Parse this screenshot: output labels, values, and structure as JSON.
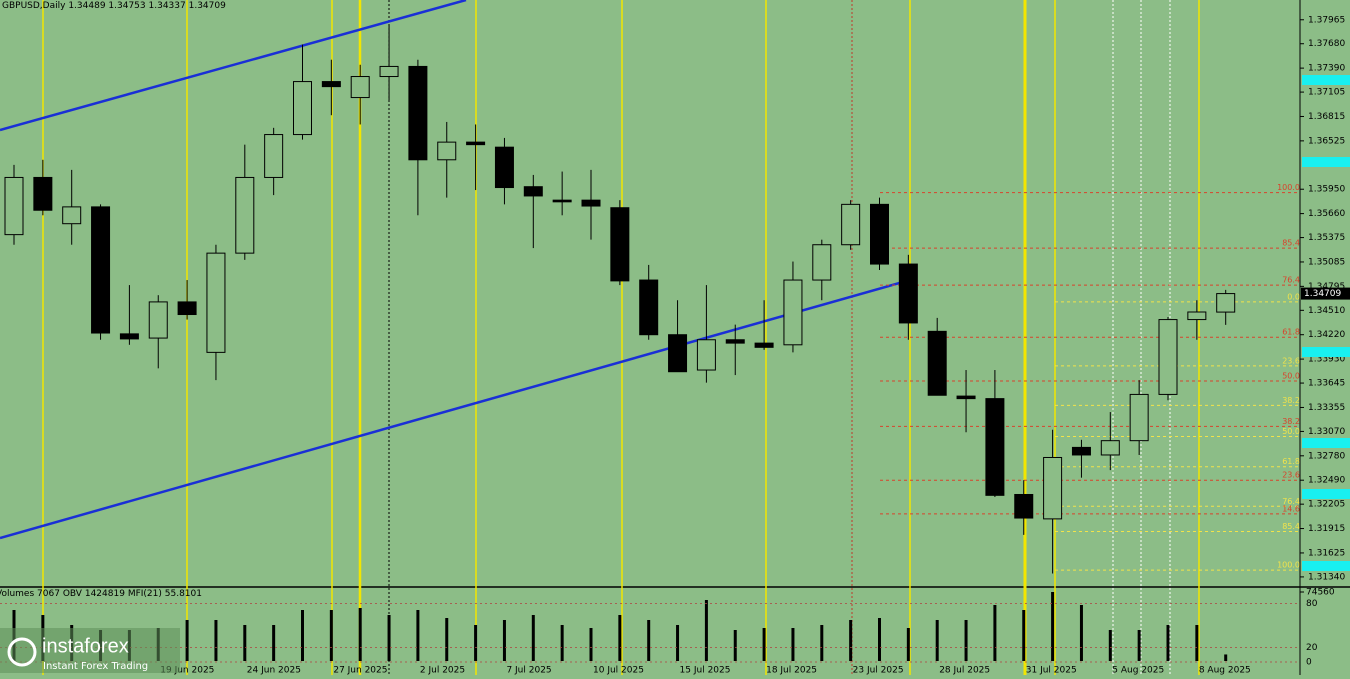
{
  "chart_data": {
    "type": "candlestick",
    "title": "GBPUSD,Daily",
    "categories": [
      null,
      null,
      null,
      null,
      null,
      "19 Jun 2025",
      null,
      null,
      "24 Jun 2025",
      null,
      null,
      "27 Jun 2025",
      null,
      null,
      "2 Jul 2025",
      null,
      null,
      "7 Jul 2025",
      null,
      null,
      "10 Jul 2025",
      null,
      null,
      "15 Jul 2025",
      null,
      null,
      "18 Jul 2025",
      null,
      null,
      "23 Jul 2025",
      null,
      null,
      "28 Jul 2025",
      null,
      null,
      "31 Jul 2025",
      null,
      null,
      "5 Aug 2025",
      null,
      null,
      "8 Aug 2025",
      null
    ],
    "open": [
      1.3541,
      1.3609,
      1.3554,
      1.3574,
      1.3423,
      1.3418,
      1.3461,
      1.3401,
      1.3519,
      1.3609,
      1.366,
      1.3723,
      1.3704,
      1.3729,
      1.3741,
      1.363,
      1.3651,
      1.3645,
      1.3598,
      1.3582,
      1.3582,
      1.3573,
      1.3487,
      1.3422,
      1.338,
      1.3416,
      1.3412,
      1.341,
      1.3487,
      1.3529,
      1.3577,
      1.3506,
      1.3426,
      1.3349,
      1.3346,
      1.3232,
      1.3203,
      1.3288,
      1.3279,
      1.3296,
      1.3351,
      1.344,
      1.34489
    ],
    "high": [
      1.3624,
      1.363,
      1.3618,
      1.3577,
      1.3481,
      1.3469,
      1.3487,
      1.3529,
      1.3648,
      1.3668,
      1.3767,
      1.3749,
      1.3743,
      1.3791,
      1.3749,
      1.3675,
      1.3672,
      1.3656,
      1.3612,
      1.3616,
      1.3618,
      1.3582,
      1.3505,
      1.3463,
      1.3481,
      1.3434,
      1.3463,
      1.3509,
      1.3535,
      1.3582,
      1.3585,
      1.3517,
      1.3442,
      1.338,
      1.338,
      1.3249,
      1.3309,
      1.3297,
      1.333,
      1.3368,
      1.3443,
      1.3463,
      1.34753
    ],
    "low": [
      1.3529,
      1.3564,
      1.3529,
      1.3416,
      1.341,
      1.3382,
      1.344,
      1.3368,
      1.3511,
      1.3588,
      1.3654,
      1.3683,
      1.3672,
      1.3701,
      1.3564,
      1.3585,
      1.3594,
      1.3577,
      1.3525,
      1.3564,
      1.3535,
      1.3481,
      1.3416,
      1.3378,
      1.3365,
      1.3374,
      1.3404,
      1.3401,
      1.3463,
      1.3523,
      1.3499,
      1.3416,
      1.335,
      1.3306,
      1.3229,
      1.3184,
      1.3138,
      1.3252,
      1.3261,
      1.3279,
      1.3344,
      1.3416,
      1.34337
    ],
    "close": [
      1.3609,
      1.357,
      1.3574,
      1.3424,
      1.3417,
      1.3461,
      1.3446,
      1.3519,
      1.3609,
      1.366,
      1.3723,
      1.3717,
      1.3729,
      1.3741,
      1.363,
      1.3651,
      1.3648,
      1.3597,
      1.3587,
      1.358,
      1.3575,
      1.3486,
      1.3422,
      1.3378,
      1.3416,
      1.3412,
      1.3407,
      1.3487,
      1.3529,
      1.3577,
      1.3506,
      1.3436,
      1.335,
      1.3346,
      1.3231,
      1.3204,
      1.3276,
      1.3279,
      1.3296,
      1.3351,
      1.344,
      1.3449,
      1.34709
    ],
    "ylim": [
      1.3122,
      1.382
    ],
    "yticks": [
      1.37965,
      {
        "value": 1.3768,
        "label": "1.37680"
      },
      {
        "value": 1.3739,
        "label": "1.37390"
      },
      1.37105,
      1.36815,
      1.36525,
      {
        "value": 1.3595,
        "label": "1.35950"
      },
      {
        "value": 1.3566,
        "label": "1.35660"
      },
      1.35375,
      1.35085,
      1.34795,
      {
        "value": 1.3451,
        "label": "1.34510"
      },
      {
        "value": 1.3422,
        "label": "1.34220"
      },
      {
        "value": 1.3393,
        "label": "1.33930"
      },
      1.33645,
      1.33355,
      {
        "value": 1.3307,
        "label": "1.33070"
      },
      {
        "value": 1.3278,
        "label": "1.32780"
      },
      {
        "value": 1.3249,
        "label": "1.32490"
      },
      1.32205,
      1.31915,
      1.31625,
      {
        "value": 1.3134,
        "label": "1.31340"
      }
    ],
    "fib_levels": [
      {
        "label": "100.0",
        "value": 1.3591,
        "color": "#d8432c"
      },
      {
        "label": "85.4",
        "value": 1.3525,
        "color": "#d8432c"
      },
      {
        "label": "76.4",
        "value": 1.3481,
        "color": "#d8432c"
      },
      {
        "label": "0.0",
        "value": 1.3461,
        "color": "#f2e34a"
      },
      {
        "label": "61.8",
        "value": 1.3419,
        "color": "#d8432c"
      },
      {
        "label": "23.6",
        "value": 1.3385,
        "color": "#f2e34a"
      },
      {
        "label": "50.0",
        "value": 1.3367,
        "color": "#d8432c"
      },
      {
        "label": "38.2",
        "value": 1.3338,
        "color": "#f2e34a"
      },
      {
        "label": "38.2",
        "value": 1.3313,
        "color": "#d8432c"
      },
      {
        "label": "50.0",
        "value": 1.3301,
        "color": "#f2e34a"
      },
      {
        "label": "61.8",
        "value": 1.3265,
        "color": "#f2e34a"
      },
      {
        "label": "23.6",
        "value": 1.3249,
        "color": "#d8432c"
      },
      {
        "label": "76.4",
        "value": 1.3218,
        "color": "#f2e34a"
      },
      {
        "label": "14.6",
        "value": 1.3209,
        "color": "#d8432c"
      },
      {
        "label": "85.4",
        "value": 1.3188,
        "color": "#f2e34a"
      },
      {
        "label": "100.0",
        "value": 1.3142,
        "color": "#f2e34a"
      }
    ],
    "volume": {
      "label": "Volumes",
      "values": [
        55110,
        49708,
        38902,
        33499,
        33499,
        35660,
        44305,
        44305,
        38902,
        38902,
        55110,
        55110,
        57272,
        49708,
        55110,
        46466,
        38902,
        44305,
        49708,
        38902,
        35660,
        49708,
        44305,
        38902,
        65917,
        33499,
        35660,
        35660,
        38902,
        44305,
        46466,
        35660,
        44305,
        44305,
        60514,
        55110,
        74560,
        60514,
        33499,
        33499,
        38902,
        38902,
        7067
      ],
      "ylim": [
        0,
        74560
      ],
      "ticks": [
        74560
      ]
    },
    "obv": {
      "label": "OBV",
      "value": 1424819
    },
    "mfi": {
      "label": "MFI(21)",
      "value": 55.8101,
      "ylim": [
        0,
        100
      ],
      "ticks": [
        0,
        20,
        80
      ]
    }
  },
  "brand": {
    "name": "instaforex",
    "tagline": "Instant Forex Trading"
  }
}
